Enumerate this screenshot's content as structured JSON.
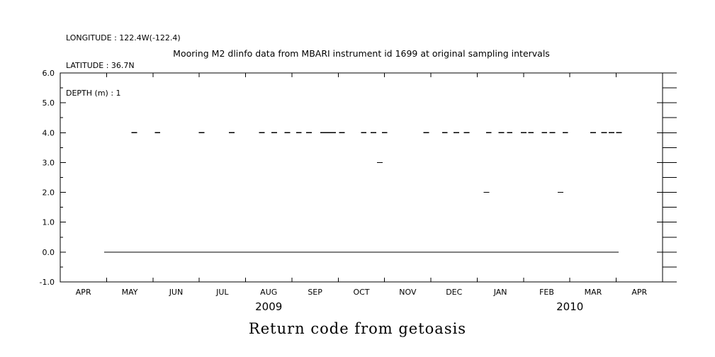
{
  "header": {
    "longitude": "LONGITUDE : 122.4W(-122.4)",
    "latitude": "LATITUDE : 36.7N",
    "depth": "DEPTH (m) : 1"
  },
  "chart_data": {
    "type": "line",
    "title": "Mooring M2 dlinfo data from MBARI instrument id 1699 at original sampling intervals",
    "caption": "Return code from getoasis",
    "xlabel": "",
    "ylabel": "",
    "grid": false,
    "colors": {
      "line": "#000000",
      "background": "#ffffff"
    },
    "x_axis": {
      "unit": "months since 2009-04-01",
      "range": [
        0,
        13
      ],
      "month_labels": [
        "APR",
        "MAY",
        "JUN",
        "JUL",
        "AUG",
        "SEP",
        "OCT",
        "NOV",
        "DEC",
        "JAN",
        "FEB",
        "MAR",
        "APR"
      ],
      "year_labels": [
        {
          "text": "2009",
          "x": 4.5
        },
        {
          "text": "2010",
          "x": 11.0
        }
      ]
    },
    "y_axis": {
      "range": [
        -1,
        6
      ],
      "tick_values": [
        -1,
        0,
        1,
        2,
        3,
        4,
        5,
        6
      ],
      "tick_labels": [
        "-1.0",
        "0.0",
        "1.0",
        "2.0",
        "3.0",
        "4.0",
        "5.0",
        "6.0"
      ],
      "minor_step": 0.5
    },
    "series": [
      {
        "name": "return_code_0",
        "y": 0.0,
        "segments": [
          [
            0.95,
            12.05
          ]
        ]
      },
      {
        "name": "return_code_2",
        "y": 2.0,
        "segments": [
          [
            9.14,
            9.26
          ],
          [
            10.74,
            10.86
          ]
        ]
      },
      {
        "name": "return_code_3",
        "y": 3.0,
        "segments": [
          [
            6.84,
            6.96
          ]
        ]
      },
      {
        "name": "return_code_4",
        "y": 4.0,
        "segments": [
          [
            1.54,
            1.66
          ],
          [
            2.04,
            2.16
          ],
          [
            2.99,
            3.11
          ],
          [
            3.64,
            3.76
          ],
          [
            4.29,
            4.41
          ],
          [
            4.56,
            4.68
          ],
          [
            4.84,
            4.96
          ],
          [
            5.09,
            5.21
          ],
          [
            5.31,
            5.43
          ],
          [
            5.61,
            5.95
          ],
          [
            6.02,
            6.14
          ],
          [
            6.49,
            6.61
          ],
          [
            6.7,
            6.82
          ],
          [
            6.94,
            7.06
          ],
          [
            7.84,
            7.96
          ],
          [
            8.24,
            8.36
          ],
          [
            8.49,
            8.61
          ],
          [
            8.71,
            8.83
          ],
          [
            9.19,
            9.31
          ],
          [
            9.46,
            9.58
          ],
          [
            9.64,
            9.76
          ],
          [
            9.94,
            10.06
          ],
          [
            10.1,
            10.22
          ],
          [
            10.39,
            10.51
          ],
          [
            10.56,
            10.68
          ],
          [
            10.84,
            10.96
          ],
          [
            11.44,
            11.56
          ],
          [
            11.68,
            11.8
          ],
          [
            11.84,
            11.96
          ],
          [
            12.0,
            12.12
          ]
        ]
      }
    ]
  }
}
